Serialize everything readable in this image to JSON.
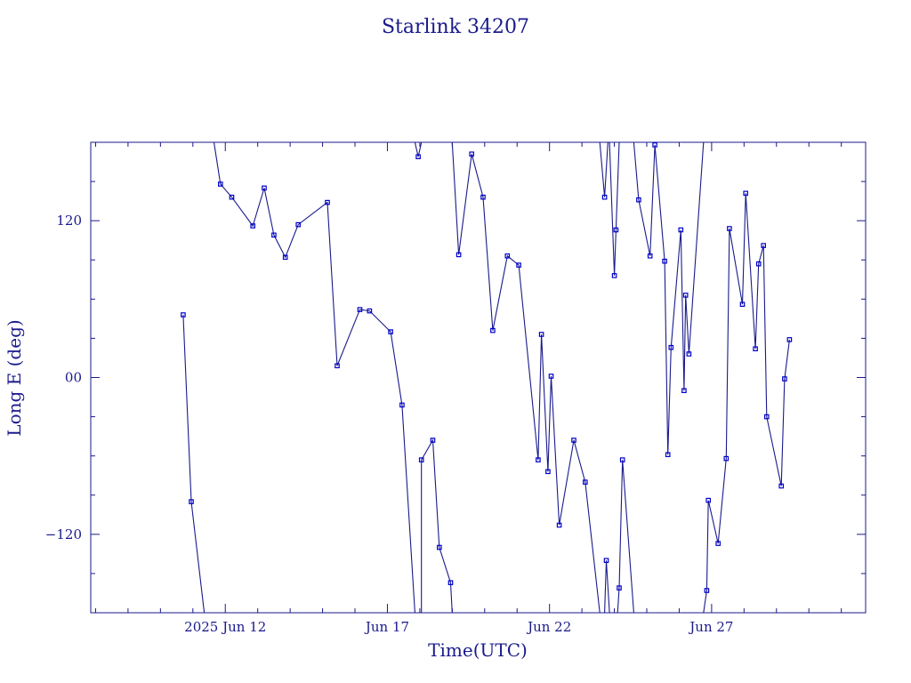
{
  "chart_data": {
    "type": "line",
    "title": "Starlink 34207",
    "xlabel": "Time(UTC)",
    "ylabel": "Long E (deg)",
    "x_ticks": [
      {
        "x": 12.0,
        "label": "2025 Jun 12"
      },
      {
        "x": 17.0,
        "label": "Jun 17"
      },
      {
        "x": 22.0,
        "label": "Jun 22"
      },
      {
        "x": 27.0,
        "label": "Jun 27"
      }
    ],
    "y_ticks": [
      {
        "y": 120,
        "label": "120"
      },
      {
        "y": 0,
        "label": "00"
      },
      {
        "y": -120,
        "label": "-120"
      }
    ],
    "xlim": [
      7.85,
      31.75
    ],
    "ylim": [
      -180,
      180
    ],
    "grid": false,
    "series": [
      {
        "points": [
          [
            10.7,
            48
          ],
          [
            10.95,
            -95
          ],
          [
            11.35,
            -180
          ]
        ]
      },
      {
        "points": [
          [
            11.65,
            180
          ],
          [
            11.85,
            148
          ],
          [
            12.2,
            138
          ],
          [
            12.85,
            116
          ],
          [
            13.2,
            145
          ],
          [
            13.5,
            109
          ],
          [
            13.85,
            92
          ],
          [
            14.25,
            117
          ],
          [
            15.15,
            134
          ],
          [
            15.45,
            9
          ],
          [
            16.15,
            52
          ],
          [
            16.45,
            51
          ],
          [
            17.1,
            35
          ],
          [
            17.45,
            -21
          ],
          [
            17.85,
            -180
          ]
        ]
      },
      {
        "points": [
          [
            17.85,
            180
          ],
          [
            17.95,
            169
          ],
          [
            18.05,
            180
          ]
        ]
      },
      {
        "points": [
          [
            18.05,
            -180
          ],
          [
            18.05,
            -63
          ],
          [
            18.4,
            -48
          ],
          [
            18.6,
            -130
          ],
          [
            18.95,
            -157
          ],
          [
            19.0,
            -180
          ]
        ]
      },
      {
        "points": [
          [
            19.0,
            180
          ],
          [
            19.2,
            94
          ],
          [
            19.6,
            171
          ],
          [
            19.95,
            138
          ],
          [
            20.25,
            36
          ],
          [
            20.7,
            93
          ],
          [
            21.05,
            86
          ],
          [
            21.65,
            -63
          ],
          [
            21.75,
            33
          ],
          [
            21.95,
            -72
          ],
          [
            22.05,
            1
          ],
          [
            22.3,
            -113
          ],
          [
            22.75,
            -48
          ],
          [
            23.1,
            -80
          ],
          [
            23.55,
            -180
          ]
        ]
      },
      {
        "points": [
          [
            23.55,
            180
          ],
          [
            23.7,
            138
          ],
          [
            23.8,
            180
          ]
        ]
      },
      {
        "points": [
          [
            23.7,
            -180
          ],
          [
            23.75,
            -140
          ],
          [
            23.85,
            -180
          ]
        ]
      },
      {
        "points": [
          [
            23.85,
            180
          ],
          [
            24.0,
            78
          ],
          [
            24.05,
            113
          ],
          [
            24.15,
            180
          ]
        ]
      },
      {
        "points": [
          [
            24.1,
            -180
          ],
          [
            24.15,
            -161
          ],
          [
            24.25,
            -63
          ],
          [
            24.6,
            -180
          ]
        ]
      },
      {
        "points": [
          [
            24.6,
            180
          ],
          [
            24.75,
            136
          ],
          [
            25.1,
            93
          ],
          [
            25.25,
            178
          ],
          [
            25.55,
            89
          ],
          [
            25.65,
            -59
          ],
          [
            25.75,
            23
          ],
          [
            26.05,
            113
          ],
          [
            26.15,
            -10
          ],
          [
            26.2,
            63
          ],
          [
            26.3,
            18
          ],
          [
            26.75,
            180
          ]
        ]
      },
      {
        "points": [
          [
            26.75,
            -180
          ],
          [
            26.85,
            -163
          ],
          [
            26.9,
            -94
          ],
          [
            27.2,
            -127
          ],
          [
            27.45,
            -62
          ],
          [
            27.55,
            114
          ],
          [
            27.95,
            56
          ],
          [
            28.05,
            141
          ],
          [
            28.35,
            22
          ],
          [
            28.45,
            87
          ],
          [
            28.6,
            101
          ],
          [
            28.7,
            -30
          ],
          [
            29.15,
            -83
          ],
          [
            29.25,
            -1
          ],
          [
            29.4,
            29
          ]
        ]
      }
    ]
  }
}
